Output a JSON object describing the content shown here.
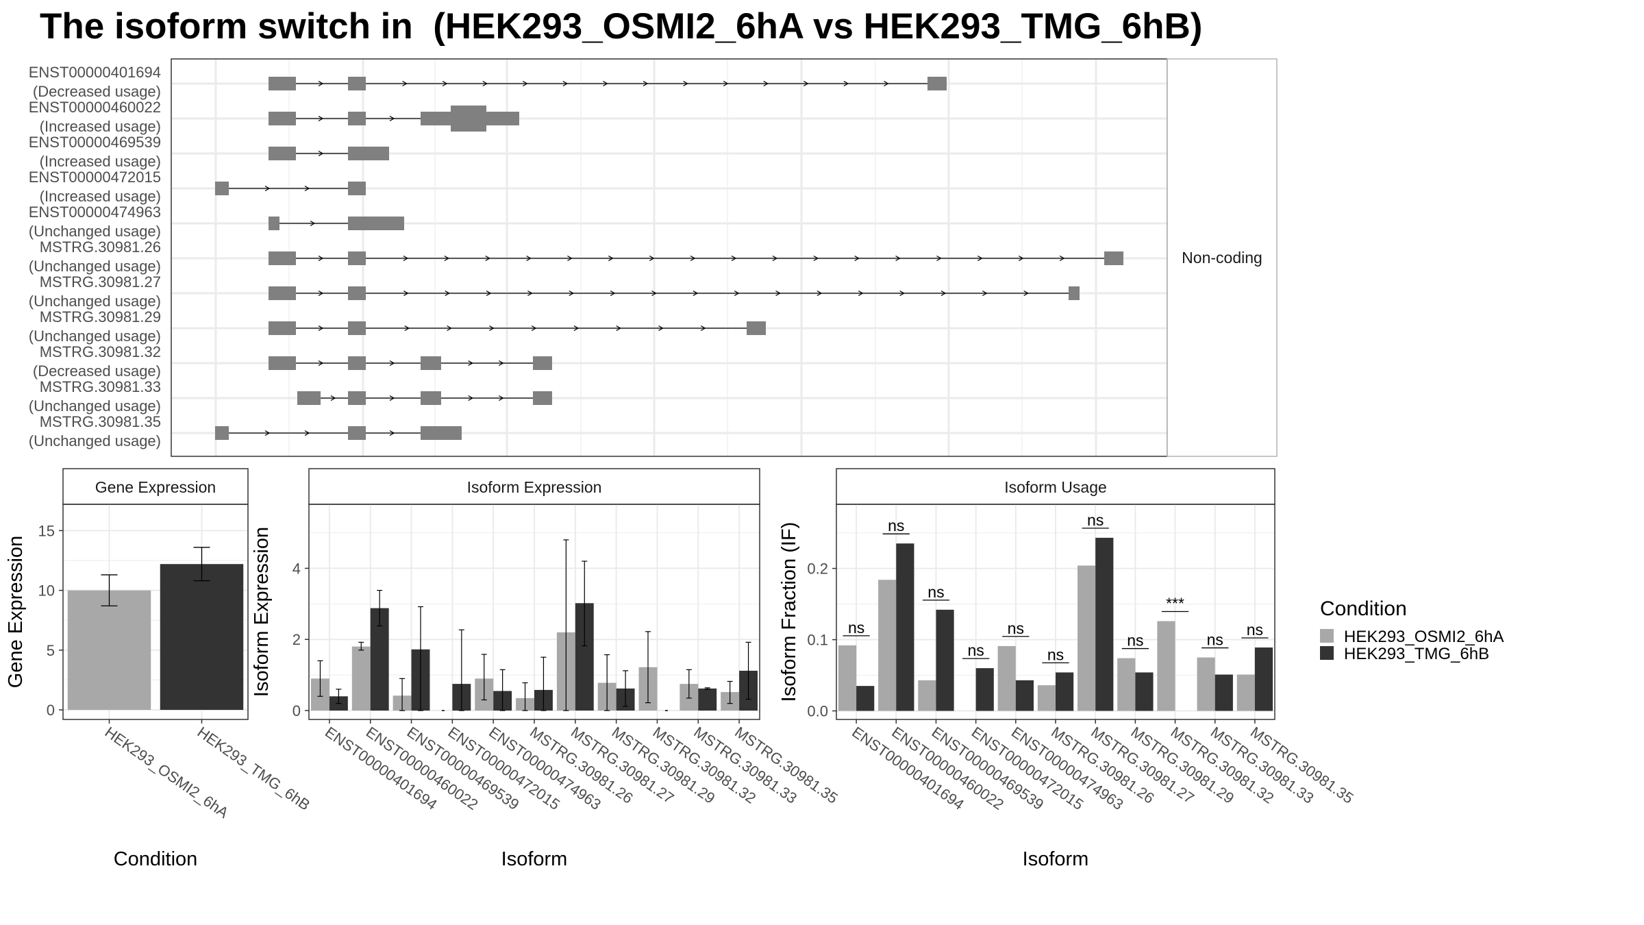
{
  "title": "The isoform switch in  (HEK293_OSMI2_6hA vs HEK293_TMG_6hB)",
  "colors": {
    "condition_a": "#a8a8a8",
    "condition_b": "#333333",
    "exon": "#808080",
    "grid": "#ebebeb",
    "panel_border": "#333333",
    "strip_bg": "#ffffff"
  },
  "structure": {
    "facet_label": "Non-coding",
    "isoforms": [
      {
        "id": "ENST00000401694",
        "status": "(Decreased usage)"
      },
      {
        "id": "ENST00000460022",
        "status": "(Increased usage)"
      },
      {
        "id": "ENST00000469539",
        "status": "(Increased usage)"
      },
      {
        "id": "ENST00000472015",
        "status": "(Increased usage)"
      },
      {
        "id": "ENST00000474963",
        "status": "(Unchanged usage)"
      },
      {
        "id": "MSTRG.30981.26",
        "status": "(Unchanged usage)"
      },
      {
        "id": "MSTRG.30981.27",
        "status": "(Unchanged usage)"
      },
      {
        "id": "MSTRG.30981.29",
        "status": "(Unchanged usage)"
      },
      {
        "id": "MSTRG.30981.32",
        "status": "(Decreased usage)"
      },
      {
        "id": "MSTRG.30981.33",
        "status": "(Unchanged usage)"
      },
      {
        "id": "MSTRG.30981.35",
        "status": "(Unchanged usage)"
      }
    ]
  },
  "legend": {
    "title": "Condition",
    "items": [
      "HEK293_OSMI2_6hA",
      "HEK293_TMG_6hB"
    ]
  },
  "chart_data": [
    {
      "type": "bar",
      "panel": "Gene Expression",
      "xlabel": "Condition",
      "ylabel": "Gene Expression",
      "ylim": [
        -0.8,
        17.2
      ],
      "yticks": [
        0,
        5,
        10,
        15
      ],
      "grid": true,
      "categories": [
        "HEK293_OSMI2_6hA",
        "HEK293_TMG_6hB"
      ],
      "values": [
        10.0,
        12.2
      ],
      "errors": [
        [
          8.7,
          11.3
        ],
        [
          10.8,
          13.6
        ]
      ]
    },
    {
      "type": "bar",
      "panel": "Isoform Expression",
      "xlabel": "Isoform",
      "ylabel": "Isoform Expression",
      "ylim": [
        -0.25,
        5.8
      ],
      "yticks": [
        0,
        2,
        4
      ],
      "grid": true,
      "categories": [
        "ENST00000401694",
        "ENST00000460022",
        "ENST00000469539",
        "ENST00000472015",
        "ENST00000474963",
        "MSTRG.30981.26",
        "MSTRG.30981.27",
        "MSTRG.30981.29",
        "MSTRG.30981.32",
        "MSTRG.30981.33",
        "MSTRG.30981.35"
      ],
      "series": [
        {
          "name": "HEK293_OSMI2_6hA",
          "values": [
            0.9,
            1.8,
            0.42,
            0.0,
            0.9,
            0.35,
            2.2,
            0.78,
            1.22,
            0.75,
            0.52
          ],
          "errors": [
            [
              0.4,
              1.4
            ],
            [
              1.7,
              1.92
            ],
            [
              0.0,
              0.9
            ],
            [
              0.0,
              0.0
            ],
            [
              0.3,
              1.58
            ],
            [
              0.0,
              0.78
            ],
            [
              0.0,
              4.8
            ],
            [
              0.0,
              1.57
            ],
            [
              0.22,
              2.22
            ],
            [
              0.35,
              1.15
            ],
            [
              0.2,
              0.82
            ]
          ]
        },
        {
          "name": "HEK293_TMG_6hB",
          "values": [
            0.4,
            2.88,
            1.72,
            0.75,
            0.55,
            0.58,
            3.02,
            0.62,
            0.0,
            0.62,
            1.12
          ],
          "errors": [
            [
              0.2,
              0.6
            ],
            [
              2.38,
              3.38
            ],
            [
              0.0,
              2.92
            ],
            [
              0.0,
              2.27
            ],
            [
              0.0,
              1.15
            ],
            [
              0.0,
              1.5
            ],
            [
              1.82,
              4.2
            ],
            [
              0.12,
              1.12
            ],
            [
              0.0,
              0.0
            ],
            [
              0.6,
              0.64
            ],
            [
              0.32,
              1.92
            ]
          ]
        }
      ]
    },
    {
      "type": "bar",
      "panel": "Isoform Usage",
      "xlabel": "Isoform",
      "ylabel": "Isoform Fraction (IF)",
      "ylim": [
        -0.012,
        0.29
      ],
      "yticks": [
        0.0,
        0.1,
        0.2
      ],
      "grid": true,
      "categories": [
        "ENST00000401694",
        "ENST00000460022",
        "ENST00000469539",
        "ENST00000472015",
        "ENST00000474963",
        "MSTRG.30981.26",
        "MSTRG.30981.27",
        "MSTRG.30981.29",
        "MSTRG.30981.32",
        "MSTRG.30981.33",
        "MSTRG.30981.35"
      ],
      "series": [
        {
          "name": "HEK293_OSMI2_6hA",
          "values": [
            0.092,
            0.184,
            0.043,
            0.0,
            0.091,
            0.036,
            0.204,
            0.074,
            0.126,
            0.075,
            0.051
          ]
        },
        {
          "name": "HEK293_TMG_6hB",
          "values": [
            0.035,
            0.235,
            0.142,
            0.06,
            0.043,
            0.054,
            0.243,
            0.054,
            0.0,
            0.051,
            0.089
          ]
        }
      ],
      "significance": [
        "ns",
        "ns",
        "ns",
        "ns",
        "ns",
        "ns",
        "ns",
        "ns",
        "***",
        "ns",
        "ns"
      ]
    }
  ]
}
